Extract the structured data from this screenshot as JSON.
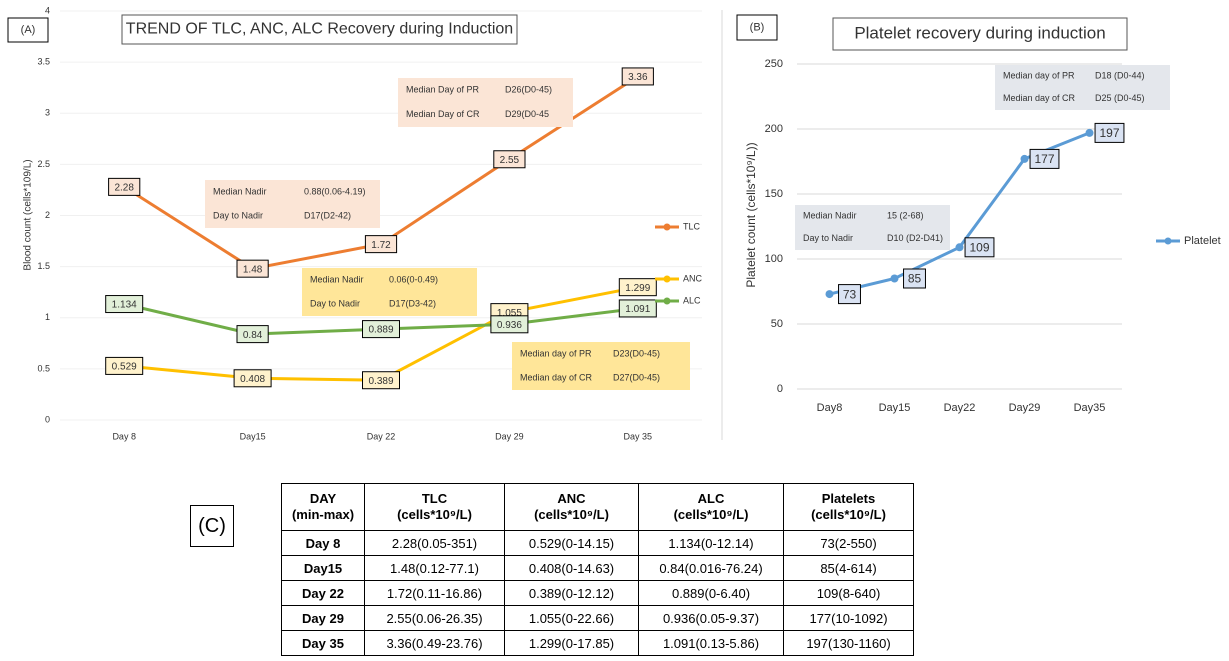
{
  "chart_data": [
    {
      "type": "line",
      "panel": "(A)",
      "title": "TREND OF TLC, ANC, ALC Recovery during Induction",
      "y_label": "Blood count (cells*109/L)",
      "categories": [
        "Day 8",
        "Day15",
        "Day 22",
        "Day 29",
        "Day 35"
      ],
      "series": [
        {
          "name": "TLC",
          "color": "#ed7d31",
          "label_fill": "#fbe5d6",
          "values": [
            2.28,
            1.48,
            1.72,
            2.55,
            3.36
          ]
        },
        {
          "name": "ANC",
          "color": "#ffc000",
          "label_fill": "#fff2cc",
          "values": [
            0.529,
            0.408,
            0.389,
            1.055,
            1.299
          ]
        },
        {
          "name": "ALC",
          "color": "#70ad47",
          "label_fill": "#e2f0d9",
          "values": [
            1.134,
            0.84,
            0.889,
            0.936,
            1.091
          ]
        }
      ],
      "ylim": [
        0,
        4
      ],
      "yticks": [
        0,
        0.5,
        1,
        1.5,
        2,
        2.5,
        3,
        3.5,
        4
      ],
      "grid": true,
      "annotations": [
        {
          "color": "#fbe5d6",
          "rows": [
            [
              "Median Nadir",
              "0.88(0.06-4.19)"
            ],
            [
              "Day to Nadir",
              "D17(D2-42)"
            ]
          ]
        },
        {
          "color": "#fbe5d6",
          "rows": [
            [
              "Median Day of PR",
              "D26(D0-45)"
            ],
            [
              "Median Day of CR",
              "D29(D0-45"
            ]
          ]
        },
        {
          "color": "#ffe699",
          "rows": [
            [
              "Median Nadir",
              "0.06(0-0.49)"
            ],
            [
              "Day to Nadir",
              "D17(D3-42)"
            ]
          ]
        },
        {
          "color": "#ffe699",
          "rows": [
            [
              "Median day of PR",
              "D23(D0-45)"
            ],
            [
              "Median day of CR",
              "D27(D0-45)"
            ]
          ]
        }
      ]
    },
    {
      "type": "line",
      "panel": "(B)",
      "title": "Platelet recovery during induction",
      "y_label": "Platelet count (cells*10⁹/L))",
      "categories": [
        "Day8",
        "Day15",
        "Day22",
        "Day29",
        "Day35"
      ],
      "series": [
        {
          "name": "Platelet",
          "color": "#5b9bd5",
          "label_fill": "#dae3f3",
          "values": [
            73,
            85,
            109,
            177,
            197
          ]
        }
      ],
      "ylim": [
        0,
        250
      ],
      "yticks": [
        0,
        50,
        100,
        150,
        200,
        250
      ],
      "grid": true,
      "annotations": [
        {
          "color": "#e4e7ec",
          "rows": [
            [
              "Median Nadir",
              "15 (2-68)"
            ],
            [
              "Day to Nadir",
              "D10 (D2-D41)"
            ]
          ]
        },
        {
          "color": "#e4e7ec",
          "rows": [
            [
              "Median day of PR",
              "D18 (D0-44)"
            ],
            [
              "Median day of CR",
              "D25 (D0-45)"
            ]
          ]
        }
      ]
    }
  ],
  "table": {
    "label": "(C)",
    "header": [
      [
        "DAY",
        "(min-max)"
      ],
      [
        "TLC",
        "(cells*10⁹/L)"
      ],
      [
        "ANC",
        "(cells*10⁹/L)"
      ],
      [
        "ALC",
        "(cells*10⁹/L)"
      ],
      [
        "Platelets",
        "(cells*10⁹/L)"
      ]
    ],
    "rows": [
      [
        "Day 8",
        "2.28(0.05-351)",
        "0.529(0-14.15)",
        "1.134(0-12.14)",
        "73(2-550)"
      ],
      [
        "Day15",
        "1.48(0.12-77.1)",
        "0.408(0-14.63)",
        "0.84(0.016-76.24)",
        "85(4-614)"
      ],
      [
        "Day 22",
        "1.72(0.11-16.86)",
        "0.389(0-12.12)",
        "0.889(0-6.40)",
        "109(8-640)"
      ],
      [
        "Day 29",
        "2.55(0.06-26.35)",
        "1.055(0-22.66)",
        "0.936(0.05-9.37)",
        "177(10-1092)"
      ],
      [
        "Day 35",
        "3.36(0.49-23.76)",
        "1.299(0-17.85)",
        "1.091(0.13-5.86)",
        "197(130-1160)"
      ]
    ]
  }
}
